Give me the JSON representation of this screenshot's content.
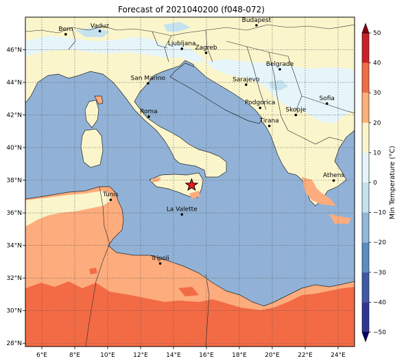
{
  "title": "Forecast of 2021040200 (f048-072)",
  "map": {
    "lon_range": [
      5,
      25
    ],
    "lat_range": [
      27.8,
      48
    ],
    "lon_ticks": [
      {
        "value": 6,
        "label": "6°E"
      },
      {
        "value": 8,
        "label": "8°E"
      },
      {
        "value": 10,
        "label": "10°E"
      },
      {
        "value": 12,
        "label": "12°E"
      },
      {
        "value": 14,
        "label": "14°E"
      },
      {
        "value": 16,
        "label": "16°E"
      },
      {
        "value": 18,
        "label": "18°E"
      },
      {
        "value": 20,
        "label": "20°E"
      },
      {
        "value": 22,
        "label": "22°E"
      },
      {
        "value": 24,
        "label": "24°E"
      }
    ],
    "lat_ticks": [
      {
        "value": 28,
        "label": "28°N"
      },
      {
        "value": 30,
        "label": "30°N"
      },
      {
        "value": 32,
        "label": "32°N"
      },
      {
        "value": 34,
        "label": "34°N"
      },
      {
        "value": 36,
        "label": "36°N"
      },
      {
        "value": 38,
        "label": "38°N"
      },
      {
        "value": 40,
        "label": "40°N"
      },
      {
        "value": 42,
        "label": "42°N"
      },
      {
        "value": 44,
        "label": "44°N"
      },
      {
        "value": 46,
        "label": "46°N"
      }
    ],
    "grid": true,
    "gridline_style": "dotted",
    "cities": [
      {
        "name": "Bern",
        "lon": 7.45,
        "lat": 46.95
      },
      {
        "name": "Vaduz",
        "lon": 9.52,
        "lat": 47.14
      },
      {
        "name": "Budapest",
        "lon": 19.04,
        "lat": 47.5
      },
      {
        "name": "Ljubljana",
        "lon": 14.51,
        "lat": 46.06
      },
      {
        "name": "Zagreb",
        "lon": 15.98,
        "lat": 45.81
      },
      {
        "name": "Belgrade",
        "lon": 20.46,
        "lat": 44.8
      },
      {
        "name": "San Marino",
        "lon": 12.45,
        "lat": 43.94
      },
      {
        "name": "Sarajevo",
        "lon": 18.41,
        "lat": 43.86
      },
      {
        "name": "Sofia",
        "lon": 23.32,
        "lat": 42.7
      },
      {
        "name": "Podgorica",
        "lon": 19.26,
        "lat": 42.44
      },
      {
        "name": "Skopje",
        "lon": 21.43,
        "lat": 42.0
      },
      {
        "name": "Roma",
        "lon": 12.5,
        "lat": 41.9
      },
      {
        "name": "Tirana",
        "lon": 19.82,
        "lat": 41.33
      },
      {
        "name": "Athens",
        "lon": 23.73,
        "lat": 37.98
      },
      {
        "name": "Tunis",
        "lon": 10.18,
        "lat": 36.8
      },
      {
        "name": "La Valette",
        "lon": 14.51,
        "lat": 35.9
      },
      {
        "name": "Tripoli",
        "lon": 13.19,
        "lat": 32.89
      }
    ],
    "marker": {
      "type": "star",
      "color": "#e41a1c",
      "lon": 15.1,
      "lat": 37.7
    }
  },
  "colorbar": {
    "label": "Min Temperature (°C)",
    "ticks": [
      -50,
      -40,
      -30,
      -20,
      -10,
      0,
      10,
      20,
      30,
      40,
      50
    ],
    "tick_labels": [
      "−50",
      "−40",
      "−30",
      "−20",
      "−10",
      "0",
      "10",
      "20",
      "30",
      "40",
      "50"
    ],
    "extend": "both",
    "levels": [
      {
        "from": -55,
        "to": -50,
        "color": "#08006e"
      },
      {
        "from": -50,
        "to": -40,
        "color": "#313695"
      },
      {
        "from": -40,
        "to": -30,
        "color": "#4058a6"
      },
      {
        "from": -30,
        "to": -20,
        "color": "#5b8cc2"
      },
      {
        "from": -20,
        "to": -10,
        "color": "#91b7d9"
      },
      {
        "from": -10,
        "to": 0,
        "color": "#c5e3ee"
      },
      {
        "from": 0,
        "to": 10,
        "color": "#e6f5f9"
      },
      {
        "from": 10,
        "to": 20,
        "color": "#fbf5cc"
      },
      {
        "from": 20,
        "to": 30,
        "color": "#fdb077"
      },
      {
        "from": 30,
        "to": 40,
        "color": "#f06c44"
      },
      {
        "from": 40,
        "to": 50,
        "color": "#c92127"
      },
      {
        "from": 50,
        "to": 55,
        "color": "#8b0017"
      }
    ]
  },
  "colors": {
    "sea": "#91b2d6",
    "land_cool": "#fbf5cc",
    "land_cold": "#e6f5f9",
    "land_colder": "#c5e3ee",
    "africa_warm": "#fdac7d",
    "africa_hot": "#f26b45",
    "coast_line": "#222222"
  }
}
